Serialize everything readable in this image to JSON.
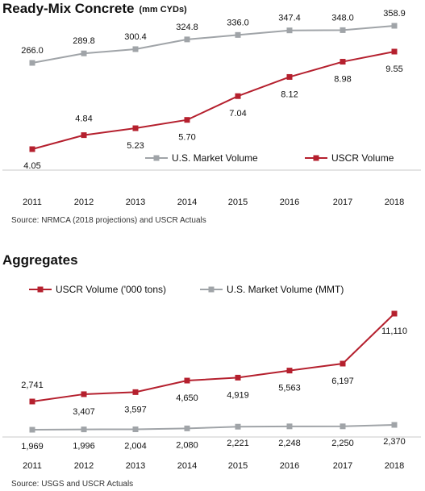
{
  "chart_data": [
    {
      "type": "line",
      "title": "Ready-Mix Concrete",
      "subtitle": "(mm CYDs)",
      "categories": [
        "2011",
        "2012",
        "2013",
        "2014",
        "2015",
        "2016",
        "2017",
        "2018"
      ],
      "series": [
        {
          "name": "U.S. Market Volume",
          "color": "#a0a4a8",
          "marker": "square",
          "values": [
            266.0,
            289.8,
            300.4,
            324.8,
            336.0,
            347.4,
            348.0,
            358.9
          ],
          "labels": [
            "266.0",
            "289.8",
            "300.4",
            "324.8",
            "336.0",
            "347.4",
            "348.0",
            "358.9"
          ]
        },
        {
          "name": "USCR Volume",
          "color": "#b5202e",
          "marker": "square",
          "values": [
            4.05,
            4.84,
            5.23,
            5.7,
            7.04,
            8.12,
            8.98,
            9.55
          ],
          "labels": [
            "4.05",
            "4.84",
            "5.23",
            "5.70",
            "7.04",
            "8.12",
            "8.98",
            "9.55"
          ]
        }
      ],
      "legend_position": "bottom-right",
      "source": "Source: NRMCA (2018 projections) and USCR Actuals"
    },
    {
      "type": "line",
      "title": "Aggregates",
      "categories": [
        "2011",
        "2012",
        "2013",
        "2014",
        "2015",
        "2016",
        "2017",
        "2018"
      ],
      "series": [
        {
          "name": "USCR Volume ('000 tons)",
          "color": "#b5202e",
          "marker": "square",
          "values": [
            2741,
            3407,
            3597,
            4650,
            4919,
            5563,
            6197,
            11110
          ],
          "labels": [
            "2,741",
            "3,407",
            "3,597",
            "4,650",
            "4,919",
            "5,563",
            "6,197",
            "11,110"
          ]
        },
        {
          "name": "U.S. Market Volume (MMT)",
          "color": "#a0a4a8",
          "marker": "square",
          "values": [
            1969,
            1996,
            2004,
            2080,
            2221,
            2248,
            2250,
            2370
          ],
          "labels": [
            "1,969",
            "1,996",
            "2,004",
            "2,080",
            "2,221",
            "2,248",
            "2,250",
            "2,370"
          ]
        }
      ],
      "legend_position": "top",
      "source": "Source: USGS and USCR Actuals"
    }
  ]
}
